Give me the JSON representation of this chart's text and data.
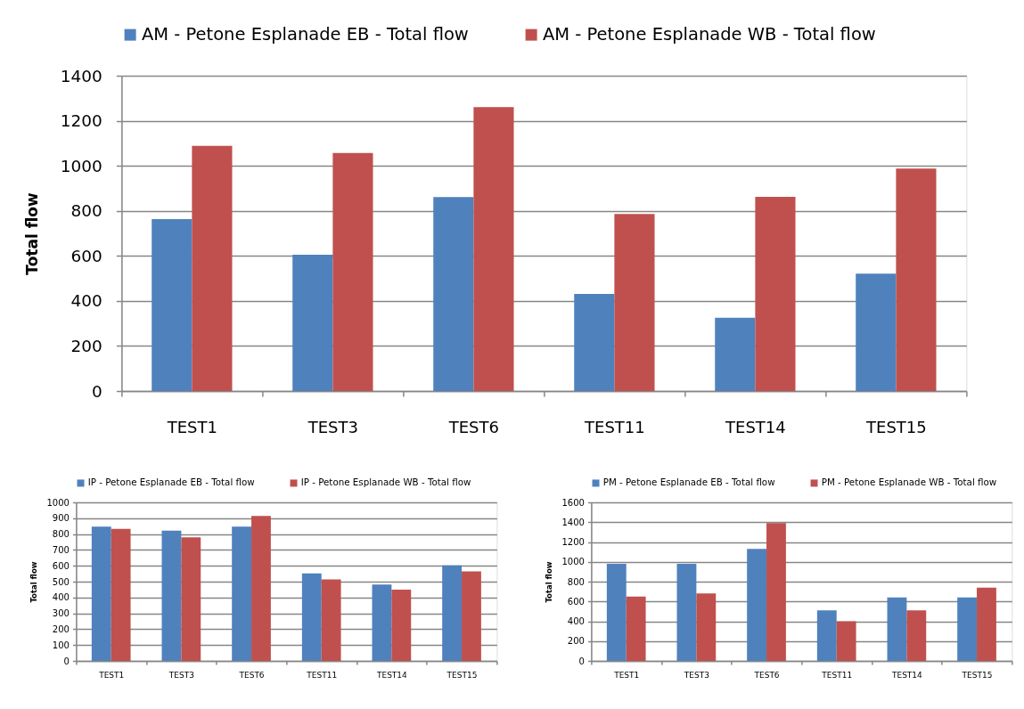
{
  "chart_data": [
    {
      "type": "bar",
      "categories": [
        "TEST1",
        "TEST3",
        "TEST6",
        "TEST11",
        "TEST14",
        "TEST15"
      ],
      "ylabel": "Total flow",
      "ylim": [
        0,
        1400
      ],
      "yticks": [
        0,
        200,
        400,
        600,
        800,
        1000,
        1200,
        1400
      ],
      "grid": "y",
      "legend": "top",
      "series": [
        {
          "name": "AM - Petone Esplanade EB - Total flow",
          "color": "#4f81bd",
          "values": [
            763,
            605,
            861,
            431,
            325,
            521
          ]
        },
        {
          "name": "AM - Petone Esplanade WB - Total flow",
          "color": "#c0504d",
          "values": [
            1089,
            1057,
            1261,
            786,
            862,
            988
          ]
        }
      ]
    },
    {
      "type": "bar",
      "categories": [
        "TEST1",
        "TEST3",
        "TEST6",
        "TEST11",
        "TEST14",
        "TEST15"
      ],
      "ylabel": "Total flow",
      "ylim": [
        0,
        1000
      ],
      "yticks": [
        0,
        100,
        200,
        300,
        400,
        500,
        600,
        700,
        800,
        900,
        1000
      ],
      "grid": "y",
      "legend": "top",
      "series": [
        {
          "name": "IP - Petone Esplanade EB - Total flow",
          "color": "#4f81bd",
          "values": [
            847,
            821,
            847,
            552,
            482,
            602
          ]
        },
        {
          "name": "IP - Petone Esplanade WB - Total flow",
          "color": "#c0504d",
          "values": [
            833,
            779,
            914,
            514,
            450,
            564
          ]
        }
      ]
    },
    {
      "type": "bar",
      "categories": [
        "TEST1",
        "TEST3",
        "TEST6",
        "TEST11",
        "TEST14",
        "TEST15"
      ],
      "ylabel": "Total flow",
      "ylim": [
        0,
        1600
      ],
      "yticks": [
        0,
        200,
        400,
        600,
        800,
        1000,
        1200,
        1400,
        1600
      ],
      "grid": "y",
      "legend": "top",
      "series": [
        {
          "name": "PM - Petone Esplanade EB - Total flow",
          "color": "#4f81bd",
          "values": [
            980,
            980,
            1130,
            510,
            640,
            640
          ]
        },
        {
          "name": "PM - Petone Esplanade WB - Total flow",
          "color": "#c0504d",
          "values": [
            650,
            680,
            1390,
            400,
            510,
            740
          ]
        }
      ]
    }
  ]
}
